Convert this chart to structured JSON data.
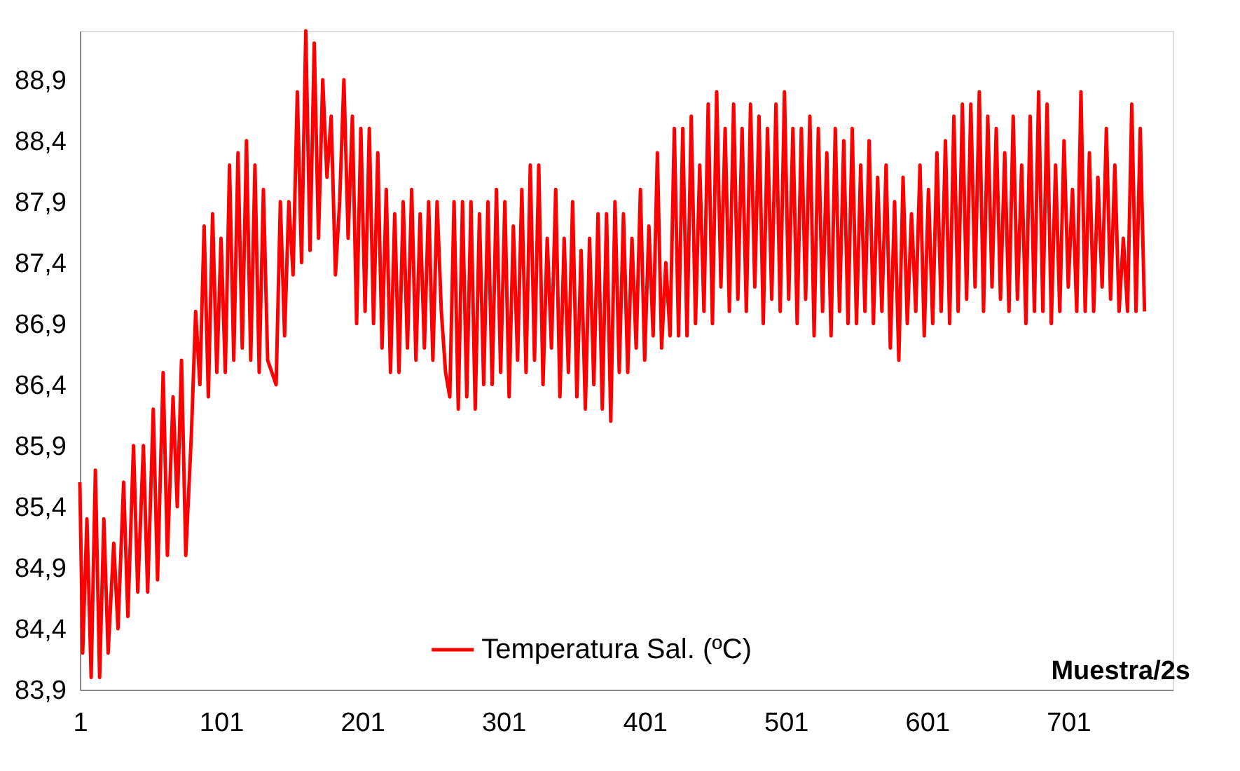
{
  "chart_data": {
    "type": "line",
    "xlabel": "Muestra/2s",
    "x": [
      1,
      3,
      6,
      9,
      12,
      15,
      18,
      21,
      25,
      28,
      32,
      35,
      39,
      42,
      46,
      49,
      53,
      56,
      60,
      63,
      67,
      70,
      73,
      76,
      80,
      83,
      86,
      89,
      92,
      95,
      98,
      101,
      104,
      107,
      110,
      113,
      116,
      119,
      122,
      125,
      128,
      131,
      134,
      137,
      140,
      143,
      146,
      149,
      152,
      155,
      158,
      161,
      164,
      167,
      170,
      173,
      176,
      179,
      182,
      185,
      188,
      191,
      194,
      197,
      200,
      203,
      206,
      209,
      212,
      215,
      218,
      221,
      224,
      227,
      230,
      233,
      236,
      239,
      242,
      245,
      248,
      251,
      254,
      257,
      260,
      263,
      266,
      269,
      272,
      275,
      278,
      281,
      284,
      287,
      290,
      293,
      296,
      299,
      302,
      305,
      308,
      311,
      314,
      317,
      320,
      323,
      326,
      329,
      332,
      335,
      338,
      341,
      344,
      347,
      350,
      353,
      356,
      359,
      362,
      365,
      368,
      371,
      374,
      377,
      380,
      383,
      386,
      389,
      392,
      395,
      398,
      401,
      404,
      407,
      410,
      413,
      416,
      419,
      422,
      425,
      428,
      431,
      434,
      437,
      440,
      443,
      446,
      449,
      452,
      455,
      458,
      461,
      464,
      467,
      470,
      473,
      476,
      479,
      482,
      485,
      488,
      491,
      494,
      497,
      500,
      503,
      506,
      509,
      512,
      515,
      518,
      521,
      524,
      527,
      530,
      533,
      536,
      539,
      542,
      545,
      548,
      551,
      554,
      557,
      560,
      563,
      566,
      569,
      572,
      575,
      578,
      581,
      584,
      587,
      590,
      593,
      596,
      599,
      602,
      605,
      608,
      611,
      614,
      617,
      620,
      623,
      626,
      629,
      632,
      635,
      638,
      641,
      644,
      647,
      650,
      653,
      656,
      659,
      662,
      665,
      668,
      671,
      674,
      677,
      680,
      683,
      686,
      689,
      692,
      695,
      698,
      701,
      704,
      707,
      710,
      713,
      716,
      719,
      722,
      725,
      728,
      731,
      734,
      737,
      740,
      743,
      746,
      749,
      752,
      755
    ],
    "series": [
      {
        "name": "Temperatura Sal. (ºC)",
        "color": "#ff0000",
        "values": [
          85.6,
          84.2,
          85.3,
          84.0,
          85.7,
          84.0,
          85.3,
          84.2,
          85.1,
          84.4,
          85.6,
          84.5,
          85.9,
          84.7,
          85.9,
          84.7,
          86.2,
          84.8,
          86.5,
          85.0,
          86.3,
          85.4,
          86.6,
          85.0,
          86.0,
          87.0,
          86.4,
          87.7,
          86.3,
          87.8,
          86.5,
          87.6,
          86.5,
          88.2,
          86.6,
          88.3,
          86.7,
          88.4,
          86.6,
          88.2,
          86.5,
          88.0,
          86.6,
          86.5,
          86.4,
          87.9,
          86.8,
          87.9,
          87.3,
          88.8,
          87.4,
          89.3,
          87.5,
          89.2,
          87.6,
          88.9,
          88.1,
          88.6,
          87.3,
          87.9,
          88.9,
          87.6,
          88.6,
          86.9,
          88.5,
          87.0,
          88.5,
          86.9,
          88.3,
          86.7,
          88.0,
          86.5,
          87.8,
          86.5,
          87.9,
          86.7,
          88.0,
          86.6,
          87.8,
          86.7,
          87.9,
          86.6,
          87.9,
          87.0,
          86.5,
          86.3,
          87.9,
          86.2,
          87.9,
          86.3,
          87.9,
          86.2,
          87.8,
          86.4,
          87.9,
          86.4,
          88.0,
          86.5,
          87.9,
          86.3,
          87.7,
          86.6,
          88.0,
          86.5,
          88.2,
          86.6,
          88.2,
          86.4,
          87.6,
          86.7,
          88.0,
          86.3,
          87.6,
          86.5,
          87.9,
          86.3,
          87.5,
          86.2,
          87.6,
          86.4,
          87.8,
          86.2,
          87.8,
          86.1,
          87.9,
          86.5,
          87.8,
          86.5,
          87.6,
          86.7,
          88.0,
          86.6,
          87.7,
          86.8,
          88.3,
          86.7,
          87.4,
          86.8,
          88.5,
          86.8,
          88.5,
          86.8,
          88.6,
          86.9,
          88.2,
          87.0,
          88.7,
          86.9,
          88.8,
          87.2,
          88.5,
          87.0,
          88.7,
          87.1,
          88.5,
          87.0,
          88.7,
          87.2,
          88.6,
          86.9,
          88.5,
          87.1,
          88.7,
          87.0,
          88.8,
          87.1,
          88.5,
          86.9,
          88.5,
          87.1,
          88.6,
          86.8,
          88.5,
          87.0,
          88.3,
          86.8,
          88.5,
          87.0,
          88.4,
          86.9,
          88.5,
          86.9,
          88.2,
          87.0,
          88.4,
          86.9,
          88.1,
          87.0,
          88.2,
          86.7,
          87.9,
          86.6,
          88.1,
          86.9,
          87.8,
          87.0,
          88.2,
          86.8,
          88.0,
          86.9,
          88.3,
          87.0,
          88.4,
          86.9,
          88.6,
          87.0,
          88.7,
          87.1,
          88.7,
          87.2,
          88.8,
          87.0,
          88.6,
          87.2,
          88.5,
          87.1,
          88.3,
          87.0,
          88.6,
          87.1,
          88.2,
          86.9,
          88.6,
          87.0,
          88.8,
          87.0,
          88.7,
          86.9,
          88.2,
          87.0,
          88.4,
          87.2,
          88.0,
          87.0,
          88.8,
          87.0,
          88.3,
          87.0,
          88.1,
          87.2,
          88.5,
          87.1,
          88.2,
          87.0,
          87.6,
          87.0,
          88.7,
          87.0,
          88.5,
          87.0
        ]
      }
    ],
    "xlim": [
      1,
      775
    ],
    "xticks": [
      1,
      101,
      201,
      301,
      401,
      501,
      601,
      701
    ],
    "ylim": [
      83.9,
      89.3
    ],
    "yticks": [
      {
        "value": 83.9,
        "label": "83,9"
      },
      {
        "value": 84.4,
        "label": "84,4"
      },
      {
        "value": 84.9,
        "label": "84,9"
      },
      {
        "value": 85.4,
        "label": "85,4"
      },
      {
        "value": 85.9,
        "label": "85,9"
      },
      {
        "value": 86.4,
        "label": "86,4"
      },
      {
        "value": 86.9,
        "label": "86,9"
      },
      {
        "value": 87.4,
        "label": "87,4"
      },
      {
        "value": 87.9,
        "label": "87,9"
      },
      {
        "value": 88.4,
        "label": "88,4"
      },
      {
        "value": 88.9,
        "label": "88,9"
      }
    ],
    "grid": false,
    "legend": "bottom",
    "line_style": "solid"
  }
}
